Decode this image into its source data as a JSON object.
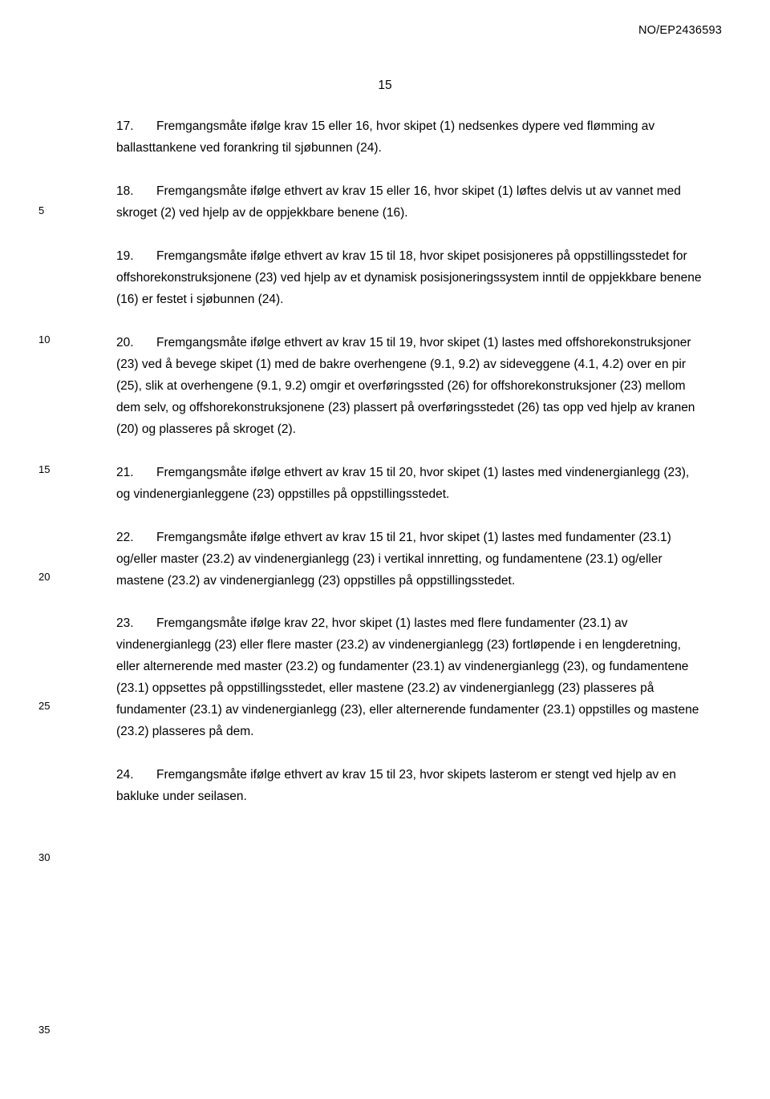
{
  "document_id": "NO/EP2436593",
  "page_number": "15",
  "line_markers": {
    "ln5": "5",
    "ln10": "10",
    "ln15": "15",
    "ln20": "20",
    "ln25": "25",
    "ln30": "30",
    "ln35": "35"
  },
  "claims": {
    "c17": {
      "num": "17.",
      "text": "Fremgangsmåte ifølge krav 15 eller 16, hvor skipet (1) nedsenkes dypere ved flømming av ballasttankene ved forankring til sjøbunnen (24)."
    },
    "c18": {
      "num": "18.",
      "text": "Fremgangsmåte ifølge ethvert av krav 15 eller 16, hvor skipet (1) løftes delvis ut av vannet med skroget (2) ved hjelp av de oppjekkbare benene (16)."
    },
    "c19": {
      "num": "19.",
      "text": "Fremgangsmåte ifølge ethvert av krav 15 til 18, hvor skipet posisjoneres på oppstillingsstedet for offshorekonstruksjonene (23) ved hjelp av et dynamisk posisjoneringssystem inntil de oppjekkbare benene (16) er festet i sjøbunnen (24)."
    },
    "c20": {
      "num": "20.",
      "text": "Fremgangsmåte ifølge ethvert av krav 15 til 19, hvor skipet (1) lastes med offshorekonstruksjoner (23) ved å bevege skipet (1) med de bakre overhengene (9.1, 9.2) av sideveggene (4.1, 4.2) over en pir (25), slik at overhengene (9.1, 9.2) omgir et overføringssted (26) for offshorekonstruksjoner (23) mellom dem selv, og offshorekonstruksjonene (23) plassert på overføringsstedet (26) tas opp ved hjelp av kranen (20) og plasseres på skroget (2)."
    },
    "c21": {
      "num": "21.",
      "text": "Fremgangsmåte ifølge ethvert av krav 15 til 20, hvor skipet (1) lastes med vindenergianlegg (23), og vindenergianleggene (23) oppstilles på oppstillingsstedet."
    },
    "c22": {
      "num": "22.",
      "text": "Fremgangsmåte ifølge ethvert av krav 15 til 21, hvor skipet (1) lastes med fundamenter (23.1) og/eller master (23.2) av vindenergianlegg (23) i vertikal innretting, og fundamentene (23.1) og/eller mastene (23.2) av vindenergianlegg (23) oppstilles på oppstillingsstedet."
    },
    "c23": {
      "num": "23.",
      "text": "Fremgangsmåte ifølge krav 22, hvor skipet (1) lastes med flere fundamenter (23.1) av vindenergianlegg (23) eller flere master (23.2) av vindenergianlegg (23) fortløpende i en lengderetning, eller alternerende med master (23.2) og fundamenter (23.1) av vindenergianlegg (23), og fundamentene (23.1) oppsettes på oppstillingsstedet, eller mastene (23.2) av vindenergianlegg (23) plasseres på fundamenter (23.1) av vindenergianlegg (23), eller alternerende fundamenter (23.1) oppstilles og mastene (23.2) plasseres på dem."
    },
    "c24": {
      "num": "24.",
      "text": "Fremgangsmåte ifølge ethvert av krav 15 til 23, hvor skipets lasterom er stengt ved hjelp av en bakluke under seilasen."
    }
  },
  "line_marker_positions": {
    "ln5": 255,
    "ln10": 416,
    "ln15": 578,
    "ln20": 712,
    "ln25": 873,
    "ln30": 1062,
    "ln35": 1277
  }
}
